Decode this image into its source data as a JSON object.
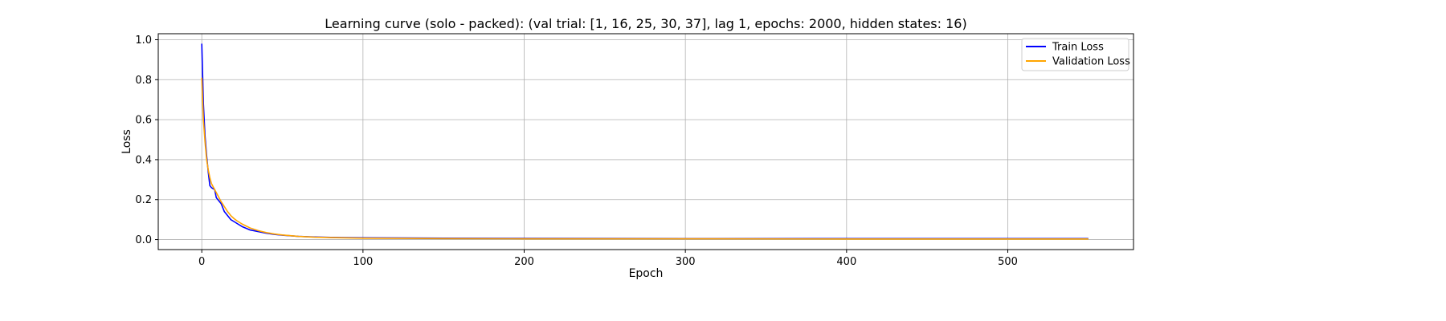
{
  "chart_data": {
    "type": "line",
    "title": "Learning curve (solo - packed): (val trial: [1, 16, 25, 30, 37], lag 1, epochs: 2000, hidden states: 16)",
    "xlabel": "Epoch",
    "ylabel": "Loss",
    "xlim": [
      -27,
      578
    ],
    "ylim": [
      -0.05,
      1.03
    ],
    "xticks": [
      0,
      100,
      200,
      300,
      400,
      500
    ],
    "yticks": [
      0.0,
      0.2,
      0.4,
      0.6,
      0.8,
      1.0
    ],
    "ytick_labels": [
      "0.0",
      "0.2",
      "0.4",
      "0.6",
      "0.8",
      "1.0"
    ],
    "grid": true,
    "legend_position": "top-right",
    "series": [
      {
        "name": "Train Loss",
        "color": "#0000ff",
        "x": [
          0,
          1,
          2,
          3,
          4,
          5,
          6,
          8,
          9,
          10,
          12,
          14,
          16,
          18,
          20,
          22,
          25,
          28,
          30,
          35,
          40,
          45,
          50,
          60,
          70,
          80,
          100,
          150,
          200,
          300,
          400,
          500,
          550
        ],
        "y": [
          0.98,
          0.68,
          0.52,
          0.42,
          0.34,
          0.27,
          0.26,
          0.25,
          0.21,
          0.2,
          0.18,
          0.14,
          0.12,
          0.1,
          0.09,
          0.08,
          0.065,
          0.055,
          0.048,
          0.04,
          0.032,
          0.026,
          0.022,
          0.016,
          0.013,
          0.011,
          0.009,
          0.007,
          0.006,
          0.005,
          0.005,
          0.005,
          0.005
        ]
      },
      {
        "name": "Validation Loss",
        "color": "#ffa500",
        "x": [
          0,
          1,
          2,
          3,
          4,
          5,
          6,
          8,
          10,
          12,
          14,
          16,
          18,
          20,
          22,
          25,
          28,
          30,
          35,
          40,
          45,
          50,
          60,
          70,
          80,
          100,
          150,
          200,
          300,
          400,
          500,
          550
        ],
        "y": [
          0.81,
          0.6,
          0.49,
          0.4,
          0.35,
          0.31,
          0.28,
          0.25,
          0.22,
          0.19,
          0.165,
          0.14,
          0.12,
          0.105,
          0.093,
          0.078,
          0.066,
          0.058,
          0.045,
          0.035,
          0.028,
          0.023,
          0.016,
          0.012,
          0.01,
          0.007,
          0.005,
          0.004,
          0.004,
          0.003,
          0.003,
          0.003
        ]
      }
    ]
  }
}
